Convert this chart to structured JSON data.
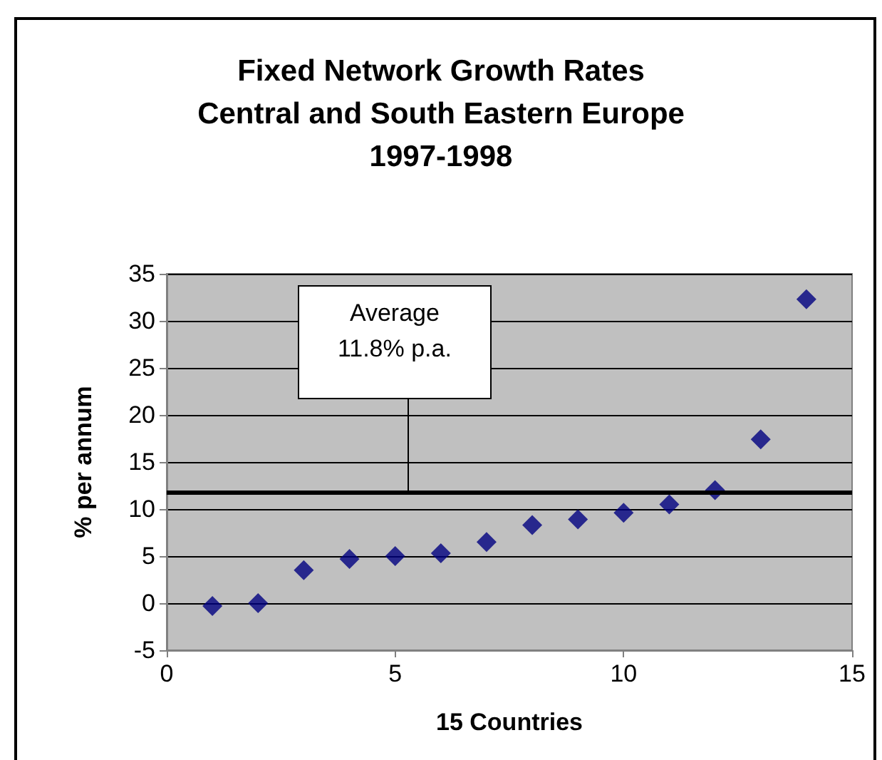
{
  "chart_data": {
    "type": "scatter",
    "title": "Fixed Network Growth Rates\nCentral and South Eastern Europe\n1997-1998",
    "xlabel": "15 Countries",
    "ylabel": "% per annum",
    "x": [
      1,
      2,
      3,
      4,
      5,
      6,
      7,
      8,
      9,
      10,
      11,
      12,
      13,
      14
    ],
    "values": [
      -0.3,
      0,
      3.5,
      4.7,
      5.0,
      5.3,
      6.5,
      8.3,
      8.9,
      9.6,
      10.5,
      12,
      17.4,
      32.3
    ],
    "color": "#000080",
    "marker": "diamond",
    "xlim": [
      0,
      15
    ],
    "xticks": [
      0,
      5,
      10,
      15
    ],
    "ylim": [
      -5,
      35
    ],
    "yticks": [
      -5,
      0,
      5,
      10,
      15,
      20,
      25,
      30,
      35
    ],
    "grid": "y",
    "ref_lines": [
      {
        "axis": "y",
        "value": 11.8,
        "label": "Average\n11.8% p.a.",
        "color": "#000000"
      }
    ]
  }
}
